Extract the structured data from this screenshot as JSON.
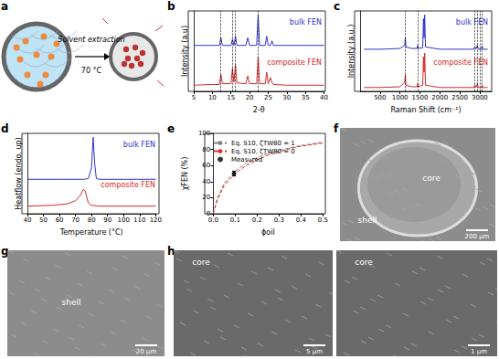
{
  "chart_data": [
    {
      "panel": "b",
      "type": "line",
      "x_label": "2-θ",
      "y_label": "Intensity (a.u)",
      "xlim": [
        5,
        40
      ],
      "xticks": [
        5,
        10,
        15,
        20,
        25,
        30,
        35,
        40
      ],
      "ylim": [
        0,
        105
      ],
      "tick_labels": "x",
      "vlines": [
        12.3,
        15.4,
        16.2,
        22.3
      ],
      "series": [
        {
          "name": "bulk FEN",
          "color": "#3232c8",
          "x": [
            5,
            10,
            11.9,
            12.3,
            12.7,
            15,
            15.4,
            15.8,
            16.2,
            16.6,
            19,
            19.5,
            20,
            21.9,
            22.3,
            22.7,
            24.2,
            24.6,
            25.0,
            25.6,
            26,
            26.4,
            30,
            35,
            40
          ],
          "values": [
            60,
            60,
            60,
            70,
            60,
            60,
            68,
            60,
            72,
            60,
            60,
            70,
            60,
            60,
            100,
            60,
            60,
            72,
            60,
            60,
            66,
            60,
            60,
            60,
            60
          ]
        },
        {
          "name": "composite FEN",
          "color": "#d62728",
          "x": [
            5,
            10,
            11.9,
            12.3,
            12.7,
            15,
            15.4,
            15.8,
            16.2,
            16.6,
            19,
            19.5,
            20,
            21.9,
            22.3,
            22.7,
            24.2,
            24.6,
            25.0,
            25.6,
            26,
            26.4,
            30,
            35,
            40
          ],
          "values": [
            8,
            9,
            9,
            22,
            10,
            10,
            30,
            12,
            35,
            11,
            10,
            20,
            10,
            10,
            45,
            10,
            10,
            25,
            10,
            18,
            12,
            9,
            8,
            8,
            8
          ]
        }
      ]
    },
    {
      "panel": "c",
      "type": "line",
      "x_label": "Raman Shift (cm⁻¹)",
      "y_label": "Intensity (a.u.)",
      "xlim": [
        0,
        3300
      ],
      "xticks": [
        500,
        1000,
        1500,
        2000,
        2500,
        3000
      ],
      "ylim": [
        0,
        105
      ],
      "tick_labels": "x",
      "vlines": [
        1130,
        1440,
        2880,
        2935,
        3010,
        3065
      ],
      "series": [
        {
          "name": "bulk FEN",
          "color": "#3232c8",
          "x": [
            100,
            500,
            1000,
            1120,
            1135,
            1150,
            1300,
            1430,
            1445,
            1460,
            1570,
            1590,
            1605,
            1620,
            1640,
            2000,
            2500,
            2850,
            2880,
            2900,
            2940,
            2970,
            3040,
            3060,
            3080,
            3200
          ],
          "values": [
            55,
            55,
            56,
            60,
            70,
            58,
            56,
            56,
            60,
            56,
            57,
            95,
            70,
            100,
            58,
            55,
            55,
            55,
            58,
            55,
            60,
            55,
            55,
            59,
            55,
            55
          ]
        },
        {
          "name": "composite FEN",
          "color": "#d62728",
          "x": [
            100,
            500,
            1000,
            1120,
            1135,
            1150,
            1300,
            1430,
            1445,
            1460,
            1570,
            1590,
            1605,
            1620,
            1640,
            2000,
            2500,
            2850,
            2880,
            2900,
            2940,
            2970,
            3040,
            3060,
            3080,
            3200
          ],
          "values": [
            5,
            5,
            6,
            12,
            22,
            8,
            6,
            6,
            10,
            6,
            8,
            45,
            25,
            50,
            8,
            5,
            5,
            5,
            8,
            5,
            10,
            5,
            5,
            8,
            5,
            5
          ]
        }
      ]
    },
    {
      "panel": "d",
      "type": "line",
      "x_label": "Temperature (°C)",
      "y_label": "Heatflow (endo. up)",
      "xlim": [
        40,
        120
      ],
      "xticks": [
        40,
        50,
        60,
        70,
        80,
        90,
        100,
        110,
        120
      ],
      "ylim": [
        0,
        105
      ],
      "tick_labels": "x",
      "series": [
        {
          "name": "bulk FEN",
          "color": "#3232c8",
          "x": [
            40,
            60,
            75,
            78,
            80,
            81,
            82,
            83,
            85,
            100,
            120
          ],
          "values": [
            45,
            45,
            45,
            46,
            60,
            100,
            65,
            46,
            45,
            45,
            45
          ]
        },
        {
          "name": "composite FEN",
          "color": "#d62728",
          "x": [
            40,
            55,
            65,
            70,
            73,
            75,
            76,
            77,
            78,
            80,
            85,
            100,
            120
          ],
          "values": [
            10,
            11,
            13,
            17,
            24,
            32,
            30,
            22,
            14,
            11,
            10,
            10,
            10
          ]
        }
      ]
    },
    {
      "panel": "e",
      "type": "line",
      "x_label": "ϕoil",
      "y_label": "χFEN (%)",
      "xlim": [
        0,
        0.5
      ],
      "xticks": [
        {
          "value": 0,
          "label": "0.0"
        },
        0.1,
        0.2,
        0.3,
        0.4,
        0.5
      ],
      "ylim": [
        0,
        100
      ],
      "yticks": [
        0,
        20,
        40,
        60,
        80,
        100
      ],
      "legend": "upper left",
      "series": [
        {
          "name": "Eq. S10, ζTW80 = 1",
          "color": "#808080",
          "line_style": "dashed",
          "x": [
            0,
            0.02,
            0.05,
            0.1,
            0.15,
            0.2,
            0.25,
            0.3,
            0.35,
            0.4,
            0.45,
            0.5
          ],
          "values": [
            0,
            20,
            38,
            53,
            63,
            70,
            75,
            79,
            82,
            85,
            87,
            89
          ]
        },
        {
          "name": "Eq. S10, ζTW80 = 0",
          "color": "#e03030",
          "line_style": "dashed",
          "x": [
            0,
            0.02,
            0.05,
            0.1,
            0.15,
            0.2,
            0.25,
            0.3,
            0.35,
            0.4,
            0.45,
            0.5
          ],
          "values": [
            0,
            18,
            35,
            50,
            60,
            67,
            73,
            77,
            81,
            84,
            86,
            88
          ]
        },
        {
          "name": "Measured",
          "color": "#000000",
          "type": "scatter",
          "marker": "circle",
          "x": [
            0.095
          ],
          "values": [
            50
          ],
          "errors": [
            3
          ]
        }
      ]
    }
  ],
  "schematic": {
    "panel": "a",
    "texts": [
      "Solvent extraction",
      "70 °C"
    ]
  },
  "images": [
    {
      "panel": "f",
      "labels": [
        "core",
        "shell"
      ],
      "scale_bar": "200 µm"
    },
    {
      "panel": "g",
      "labels": [
        "shell"
      ],
      "scale_bar": "20 µm"
    },
    {
      "panel": "h",
      "parts": [
        {
          "label": "core",
          "scale_bar": "5 µm"
        },
        {
          "label": "core",
          "scale_bar": "1 µm"
        }
      ]
    }
  ]
}
